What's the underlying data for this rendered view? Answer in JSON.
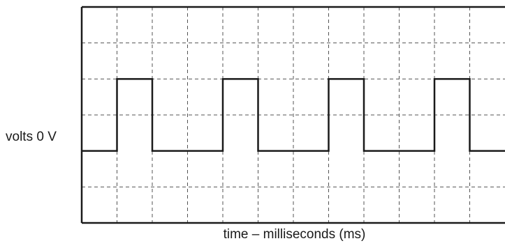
{
  "chart_data": {
    "type": "line",
    "title": "",
    "ylabel": "volts 0 V",
    "xlabel": "time – milliseconds (ms)",
    "grid": true,
    "grid_divisions": {
      "x": 12,
      "y": 6
    },
    "xlim": [
      0,
      12
    ],
    "ylim": [
      -2,
      4
    ],
    "series": [
      {
        "x": [
          0,
          1,
          1,
          2,
          2,
          4,
          4,
          5,
          5,
          7,
          7,
          8,
          8,
          10,
          10,
          11,
          11,
          12
        ],
        "values": [
          0,
          0,
          2,
          2,
          0,
          0,
          2,
          2,
          0,
          0,
          2,
          2,
          0,
          0,
          2,
          2,
          0,
          0
        ]
      }
    ],
    "colors": {
      "trace": "#1a1a1a",
      "grid": "#555555",
      "frame": "#1a1a1a"
    }
  }
}
